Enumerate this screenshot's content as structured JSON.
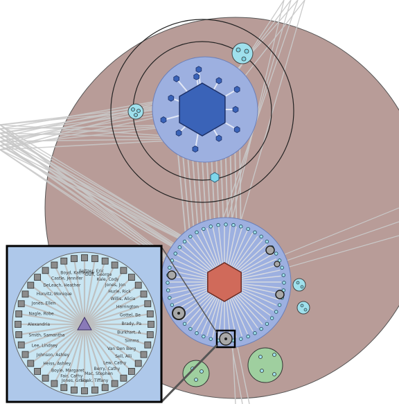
{
  "graph": {
    "colors": {
      "background": "#ffffff",
      "outer_region": "#b89c98",
      "cluster_region": "#9db0e0",
      "top_hub": "#3a63b8",
      "bottom_hub": "#d06a5a",
      "leaf_cyan": "#9fe0ec",
      "green_cluster": "#9fcf9f",
      "edge": "#c9c9c9",
      "inset_bg": "#aec8ea",
      "inset_triangle": "#8a7ab8"
    },
    "top_cluster": {
      "hub_shape": "hexagon",
      "satellite_count": 12
    },
    "bottom_cluster": {
      "hub_shape": "hexagon",
      "ring_node_count": 48
    },
    "inset": {
      "hub_shape": "triangle",
      "node_labels_left": [
        "Boyd, Katherine",
        "Castle, Jennifer",
        "DeLeach, Heather",
        "Hurvitz, Monique",
        "Jones, Ellen",
        "Nagle, Robe",
        "Alexandria",
        "Smith, Samantha",
        "Lee, Lindsey",
        "Johnson, Ashley",
        "Heiss, Ashley",
        "Boyle, Margaret",
        "Fair, Cathy"
      ],
      "node_labels_right": [
        "Seltzer, Eric",
        "Duff, George",
        "Kale, Cody",
        "Jones, Jon",
        "Hurle, Rick",
        "Willis, Alicia",
        "Harrington",
        "Gottel, Be",
        "Brady, Pa",
        "Burkhart, A",
        "Simms",
        "Van Den Berg",
        "Sell, Alli",
        "Lew, Cathy",
        "Berry, Cathy",
        "Mac, Stephen"
      ],
      "node_labels_bottom": [
        "Jones, Gracy",
        "Sivak, Tiffany"
      ]
    }
  }
}
